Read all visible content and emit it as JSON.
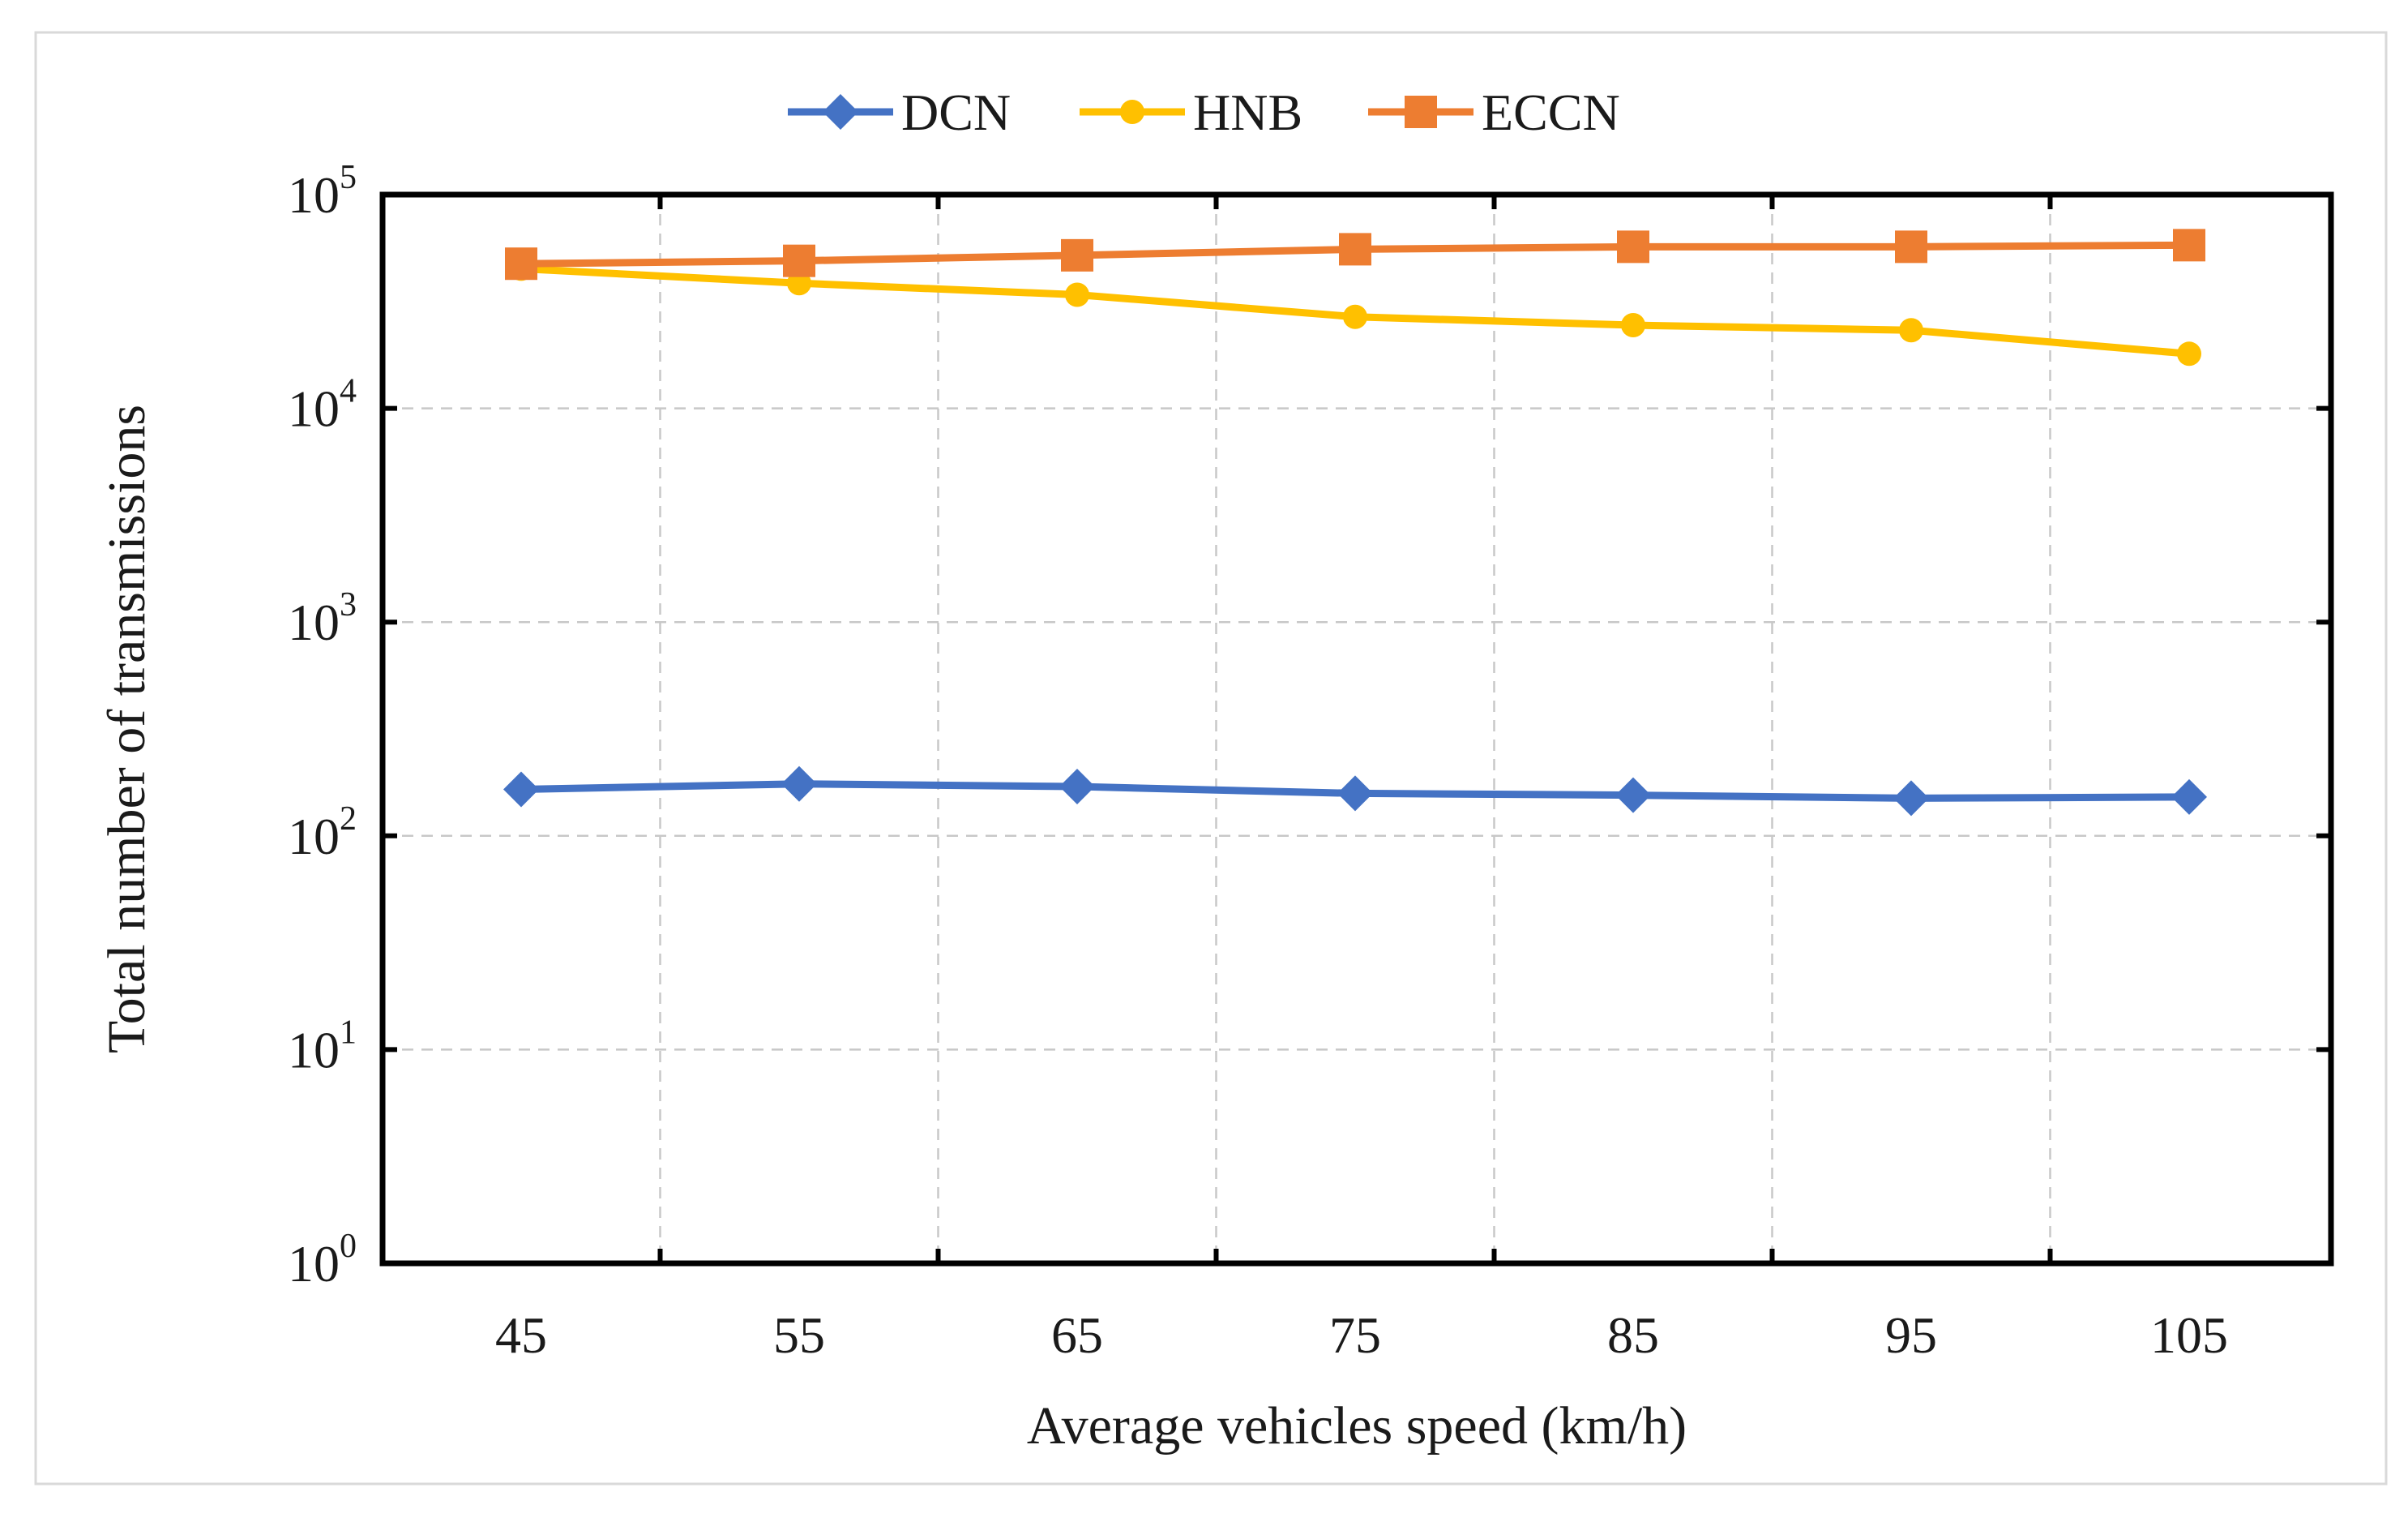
{
  "chart_data": {
    "type": "line",
    "title": "",
    "xlabel": "Average vehicles speed (km/h)",
    "ylabel": "Total number of transmissions",
    "yscale": "log",
    "ylim": [
      1,
      100000
    ],
    "grid": true,
    "legend_position": "top-center",
    "categories": [
      "45",
      "55",
      "65",
      "75",
      "85",
      "95",
      "105"
    ],
    "y_ticks": [
      {
        "base": "10",
        "exp": "0"
      },
      {
        "base": "10",
        "exp": "1"
      },
      {
        "base": "10",
        "exp": "2"
      },
      {
        "base": "10",
        "exp": "3"
      },
      {
        "base": "10",
        "exp": "4"
      },
      {
        "base": "10",
        "exp": "5"
      }
    ],
    "series": [
      {
        "name": "DCN",
        "color": "#4472C4",
        "marker": "diamond",
        "values": [
          165,
          175,
          170,
          158,
          155,
          150,
          152
        ]
      },
      {
        "name": "HNB",
        "color": "#FFC000",
        "marker": "circle",
        "values": [
          45000,
          38500,
          34000,
          26800,
          24500,
          23200,
          18000
        ]
      },
      {
        "name": "ECCN",
        "color": "#ED7D31",
        "marker": "square",
        "values": [
          47500,
          49000,
          52000,
          55500,
          57000,
          57000,
          58000
        ]
      }
    ]
  }
}
